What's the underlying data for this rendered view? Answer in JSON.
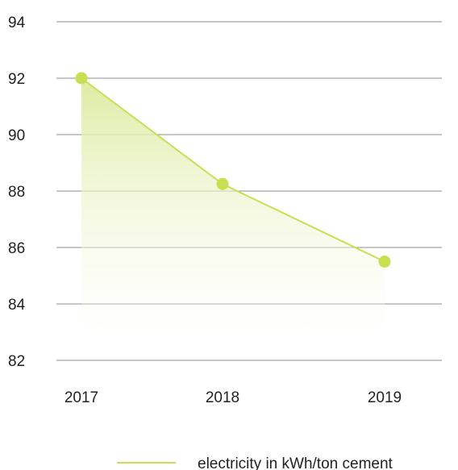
{
  "chart_data": {
    "type": "area",
    "x": [
      "2017",
      "2018",
      "2019"
    ],
    "series": [
      {
        "name": "electricity in kWh/ton cement",
        "values": [
          92.0,
          88.25,
          85.5
        ]
      }
    ],
    "title": "",
    "xlabel": "",
    "ylabel": "",
    "ylim": [
      82,
      94
    ],
    "yticks": [
      "82",
      "84",
      "86",
      "88",
      "90",
      "92",
      "94"
    ],
    "grid": "horizontal",
    "legend": {
      "position": "bottom-right",
      "entries": [
        "electricity in kWh/ton cement"
      ]
    },
    "colors": {
      "line": "#c8df52",
      "marker": "#c8df52",
      "fill_top": "#dbea9c",
      "fill_bottom": "#ffffff",
      "grid": "#8c8c8c",
      "text": "#222222"
    }
  }
}
